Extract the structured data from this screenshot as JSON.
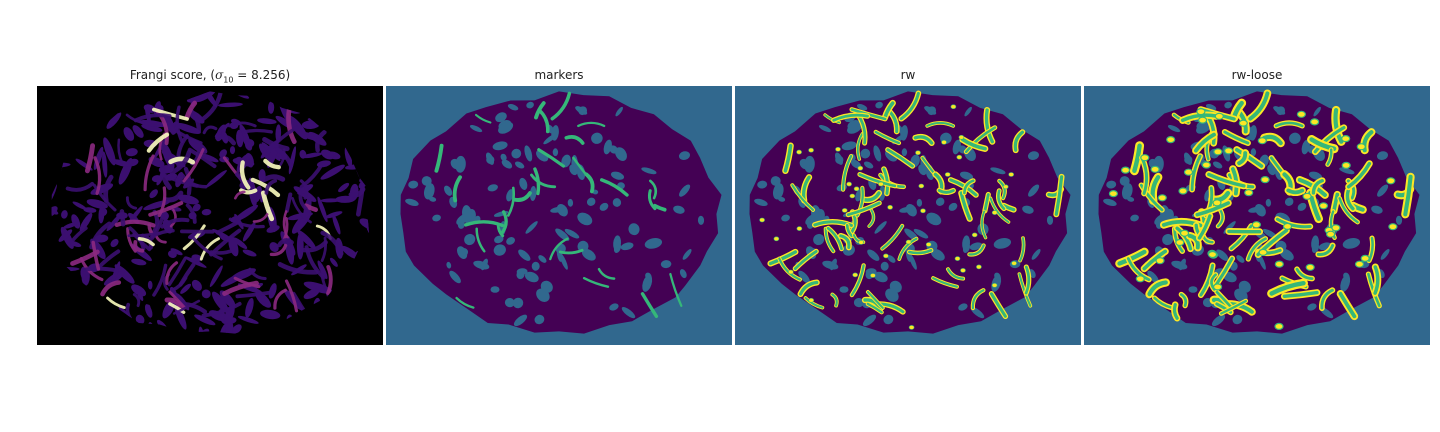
{
  "panels": [
    {
      "title_prefix": "Frangi score, (",
      "sigma_symbol": "σ",
      "sigma_sub": "10",
      "sigma_value": " = 8.256)",
      "colormap": "magma"
    },
    {
      "title": "markers",
      "colormap": "viridis-labels"
    },
    {
      "title": "rw",
      "colormap": "viridis-labels"
    },
    {
      "title": "rw-loose",
      "colormap": "viridis-labels"
    }
  ],
  "colors": {
    "background_label": "#31688e",
    "tissue_label": "#440154",
    "marker_label": "#35b779",
    "vessel_label": "#fde725",
    "frangi_bg": "#000000",
    "frangi_low": "#3b0f70",
    "frangi_mid": "#8c2981",
    "frangi_high": "#fcfdbf"
  }
}
